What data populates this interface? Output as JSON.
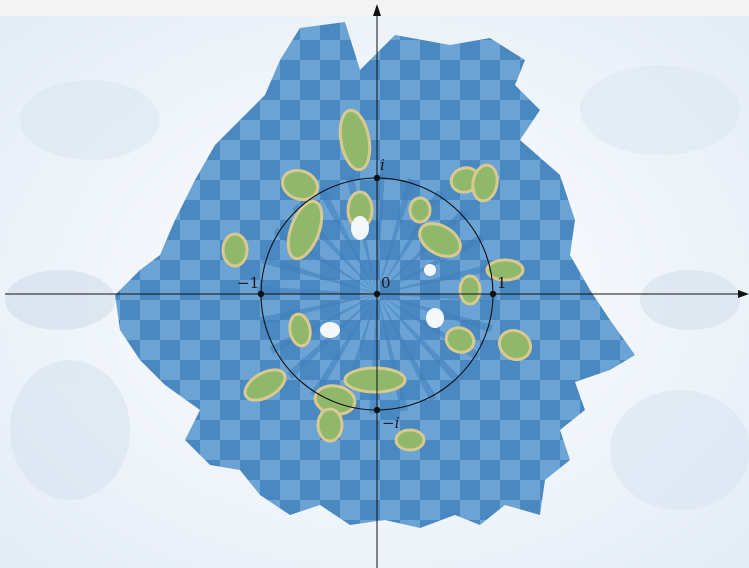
{
  "labels": {
    "origin": "0",
    "pos_real": "1",
    "neg_real": "−1",
    "pos_imag": "i",
    "neg_imag": "−i"
  },
  "points": [
    {
      "id": "origin",
      "re": 0,
      "im": 0
    },
    {
      "id": "pos_real",
      "re": 1,
      "im": 0
    },
    {
      "id": "neg_real",
      "re": -1,
      "im": 0
    },
    {
      "id": "pos_imag",
      "re": 0,
      "im": 1
    },
    {
      "id": "neg_imag",
      "re": 0,
      "im": -1
    }
  ],
  "unit_circle": {
    "center": [
      0,
      0
    ],
    "radius": 1
  },
  "colors": {
    "ice": "#f4f8fc",
    "ocean": "#4f8fc8",
    "ocean_light": "#8ab7e0",
    "land_green": "#8fb86a",
    "land_tan": "#d9c98f",
    "axis": "#111111"
  }
}
